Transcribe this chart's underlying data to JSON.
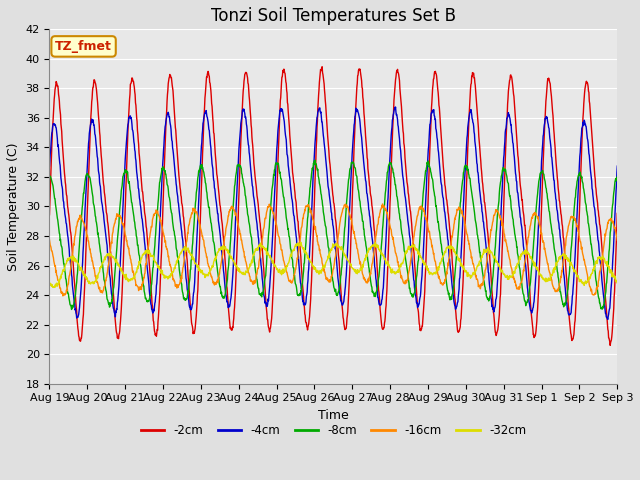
{
  "title": "Tonzi Soil Temperatures Set B",
  "xlabel": "Time",
  "ylabel": "Soil Temperature (C)",
  "ylim": [
    18,
    42
  ],
  "series": [
    "-2cm",
    "-4cm",
    "-8cm",
    "-16cm",
    "-32cm"
  ],
  "colors": [
    "#dd0000",
    "#0000cc",
    "#00aa00",
    "#ff8800",
    "#dddd00"
  ],
  "linewidths": [
    1.0,
    1.0,
    1.0,
    1.0,
    1.0
  ],
  "bg_color": "#e8e8e8",
  "title_fontsize": 12,
  "label_fontsize": 9,
  "tick_fontsize": 8,
  "legend_label": "TZ_fmet",
  "legend_box_color": "#ffffcc",
  "legend_box_edge": "#cc8800",
  "tick_labels": [
    "Aug 19",
    "Aug 20",
    "Aug 21",
    "Aug 22",
    "Aug 23",
    "Aug 24",
    "Aug 25",
    "Aug 26",
    "Aug 27",
    "Aug 28",
    "Aug 29",
    "Aug 30",
    "Aug 31",
    "Sep 1",
    "Sep 2",
    "Sep 3"
  ],
  "num_days": 15,
  "samples_per_day": 96,
  "params": {
    "-2cm": {
      "mean": 29.5,
      "amp": 10.0,
      "phase": 0.0,
      "sharpness": 3.0,
      "trend_base": 0.0,
      "trend_amp": 0.0
    },
    "-4cm": {
      "mean": 29.0,
      "amp": 7.5,
      "phase": 0.07,
      "sharpness": 2.5,
      "trend_base": 0.0,
      "trend_amp": 0.0
    },
    "-8cm": {
      "mean": 27.5,
      "amp": 5.0,
      "phase": 0.2,
      "sharpness": 1.8,
      "trend_base": 0.0,
      "trend_amp": 0.0
    },
    "-16cm": {
      "mean": 26.5,
      "amp": 2.8,
      "phase": 0.4,
      "sharpness": 1.2,
      "trend_base": 0.0,
      "trend_amp": 0.0
    },
    "-32cm": {
      "mean": 25.5,
      "amp": 1.0,
      "phase": 0.65,
      "sharpness": 1.0,
      "trend_base": 0.0,
      "trend_amp": 0.0
    }
  }
}
